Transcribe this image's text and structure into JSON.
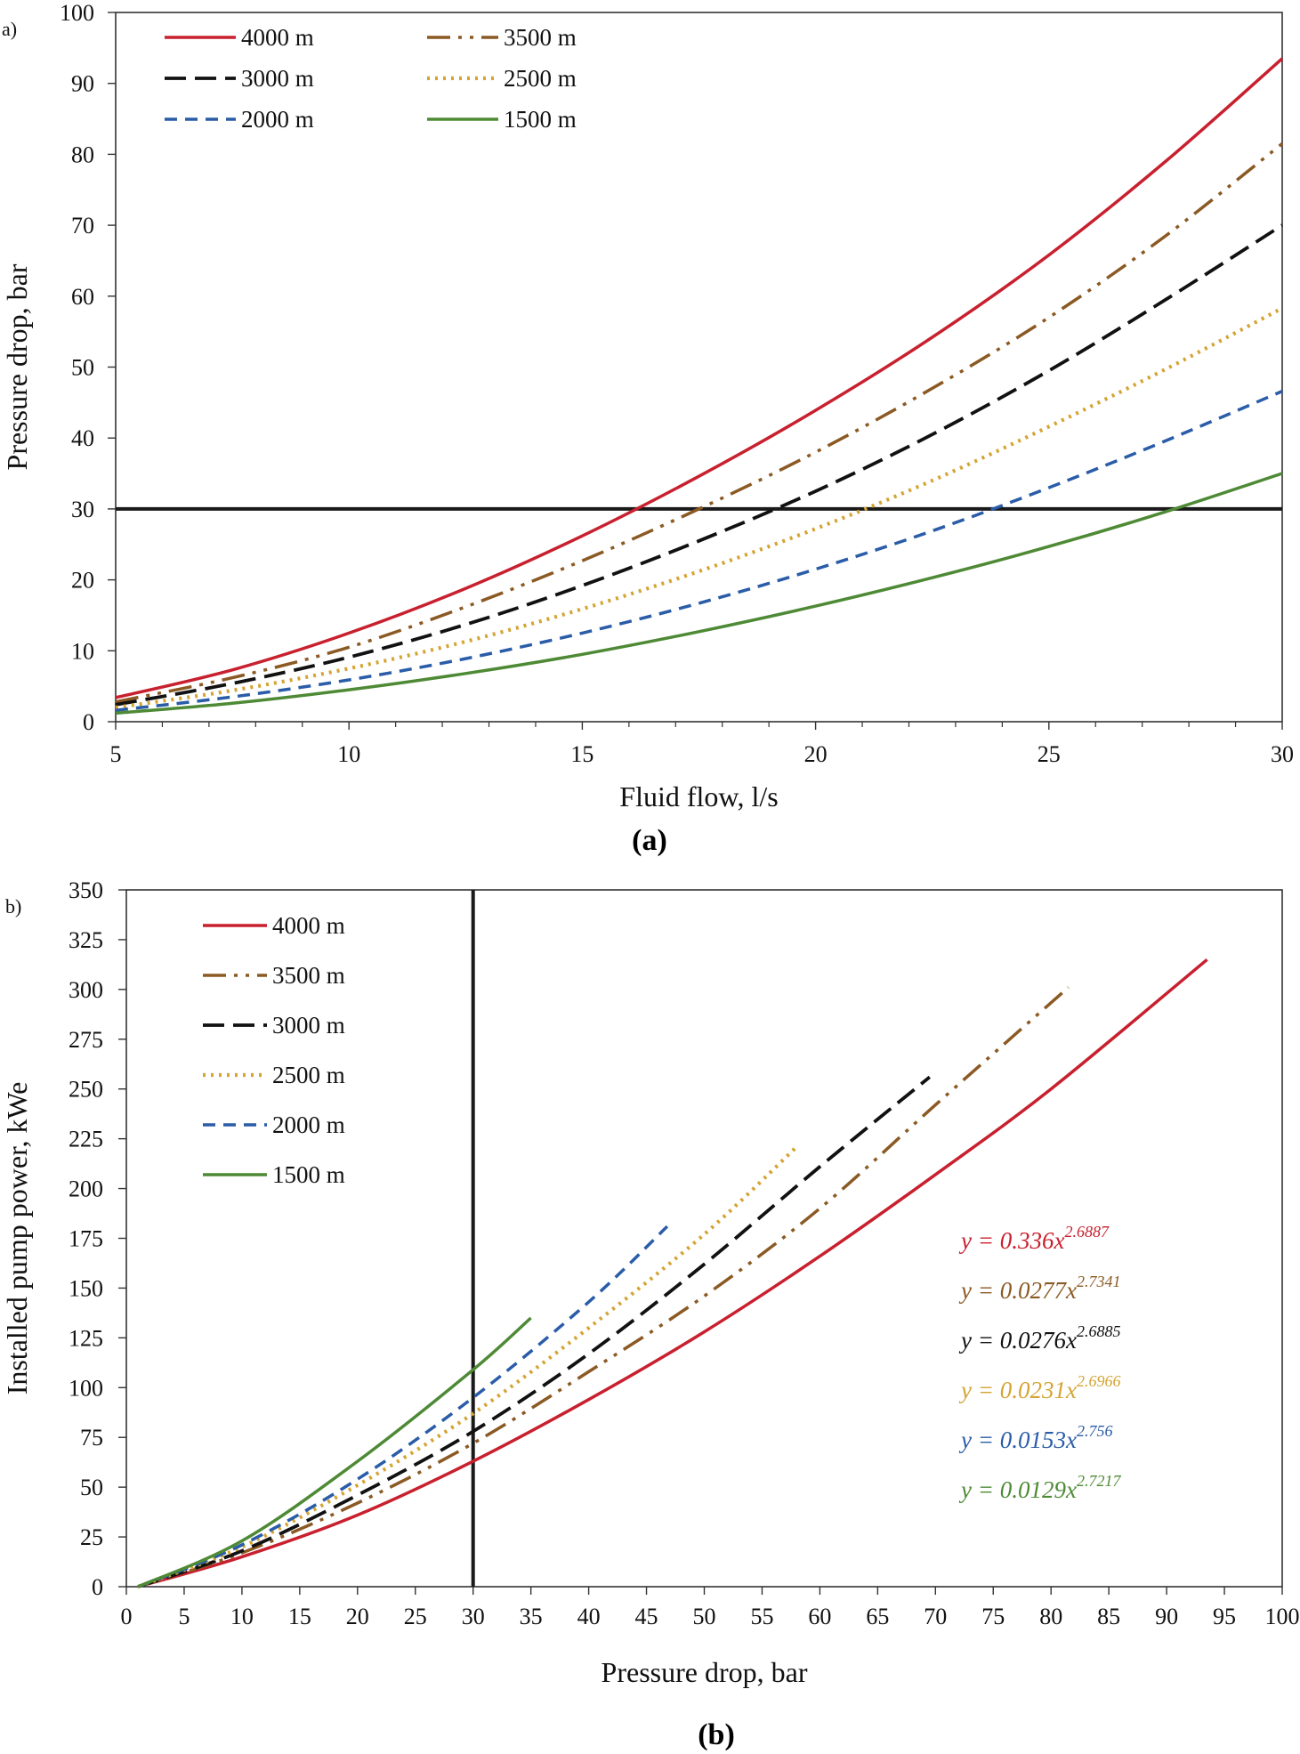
{
  "figure": {
    "caption_a": "(a)",
    "caption_b": "(b)"
  },
  "colors": {
    "4000 m": "#c8202e",
    "3500 m": "#8b5a24",
    "3000 m": "#111111",
    "2500 m": "#d4a433",
    "2000 m": "#2a5ca8",
    "1500 m": "#4e8a35",
    "threshold": "#1a1a1a"
  },
  "chart_data": [
    {
      "panel_tag": "a)",
      "type": "line",
      "xlabel": "Fluid flow, l/s",
      "ylabel": "Pressure drop, bar",
      "xlim": [
        5,
        30
      ],
      "ylim": [
        0,
        100
      ],
      "xticks": [
        5,
        10,
        15,
        20,
        25,
        30
      ],
      "yticks": [
        0,
        10,
        20,
        30,
        40,
        50,
        60,
        70,
        80,
        90,
        100
      ],
      "grid": false,
      "legend_placement": "top-left",
      "reference_line": {
        "orientation": "horizontal",
        "value": 30
      },
      "x": [
        5,
        7.5,
        10,
        12.5,
        15,
        17.5,
        20,
        22.5,
        25,
        27.5,
        30
      ],
      "series": [
        {
          "name": "4000 m",
          "values": [
            3.4,
            7.3,
            12.5,
            18.8,
            26.2,
            34.6,
            43.9,
            54.2,
            65.8,
            79.0,
            93.5
          ]
        },
        {
          "name": "3500 m",
          "values": [
            2.8,
            6.2,
            10.5,
            16.2,
            22.7,
            30.0,
            38.0,
            47.0,
            57.0,
            68.5,
            81.5
          ]
        },
        {
          "name": "3000 m",
          "values": [
            2.4,
            5.4,
            9.1,
            13.7,
            19.2,
            25.5,
            32.5,
            40.5,
            49.5,
            59.5,
            70.0
          ]
        },
        {
          "name": "2500 m",
          "values": [
            2.0,
            4.4,
            7.5,
            11.3,
            15.9,
            21.2,
            27.2,
            34.0,
            41.6,
            49.7,
            58.3
          ]
        },
        {
          "name": "2000 m",
          "values": [
            1.6,
            3.5,
            5.9,
            8.9,
            12.5,
            16.7,
            21.5,
            26.9,
            33.0,
            39.6,
            46.6
          ]
        },
        {
          "name": "1500 m",
          "values": [
            1.2,
            2.6,
            4.5,
            6.8,
            9.5,
            12.7,
            16.3,
            20.3,
            24.7,
            29.6,
            35.0
          ]
        }
      ]
    },
    {
      "panel_tag": "b)",
      "type": "line",
      "xlabel": "Pressure drop, bar",
      "ylabel": "Installed pump power, kWe",
      "xlim": [
        0,
        100
      ],
      "ylim": [
        0,
        350
      ],
      "xticks": [
        0,
        5,
        10,
        15,
        20,
        25,
        30,
        35,
        40,
        45,
        50,
        55,
        60,
        65,
        70,
        75,
        80,
        85,
        90,
        95,
        100
      ],
      "yticks": [
        0,
        25,
        50,
        75,
        100,
        125,
        150,
        175,
        200,
        225,
        250,
        275,
        300,
        325,
        350
      ],
      "grid": false,
      "legend_placement": "top-left",
      "reference_line": {
        "orientation": "vertical",
        "value": 30
      },
      "series": [
        {
          "name": "4000 m",
          "x": [
            1,
            10,
            20,
            30,
            40,
            50,
            60,
            70,
            80,
            93.5
          ],
          "y": [
            0,
            15,
            36,
            63,
            94,
            128,
            166,
            207,
            250,
            315
          ],
          "equation": {
            "prefix": "y = 0.336x",
            "exponent": "2.6887"
          }
        },
        {
          "name": "3500 m",
          "x": [
            1,
            10,
            20,
            30,
            40,
            50,
            60,
            70,
            81.5
          ],
          "y": [
            0,
            17,
            42,
            72,
            108,
            146,
            190,
            242,
            301
          ],
          "equation": {
            "prefix": "y = 0.0277x",
            "exponent": "2.7341"
          }
        },
        {
          "name": "3000 m",
          "x": [
            1,
            10,
            20,
            30,
            40,
            50,
            60,
            69.5
          ],
          "y": [
            0,
            18,
            46,
            78,
            117,
            162,
            211,
            256
          ],
          "equation": {
            "prefix": "y = 0.0276x",
            "exponent": "2.6885"
          }
        },
        {
          "name": "2500 m",
          "x": [
            1,
            10,
            20,
            30,
            40,
            50,
            58
          ],
          "y": [
            0,
            20,
            51,
            87,
            130,
            177,
            221
          ],
          "equation": {
            "prefix": "y = 0.0231x",
            "exponent": "2.6966"
          }
        },
        {
          "name": "2000 m",
          "x": [
            1,
            10,
            20,
            30,
            40,
            46.8
          ],
          "y": [
            0,
            21,
            54,
            95,
            143,
            181
          ],
          "equation": {
            "prefix": "y = 0.0153x",
            "exponent": "2.756"
          }
        },
        {
          "name": "1500 m",
          "x": [
            1,
            10,
            20,
            30,
            35
          ],
          "y": [
            0,
            23,
            63,
            109,
            135
          ],
          "equation": {
            "prefix": "y = 0.0129x",
            "exponent": "2.7217"
          }
        }
      ]
    }
  ]
}
